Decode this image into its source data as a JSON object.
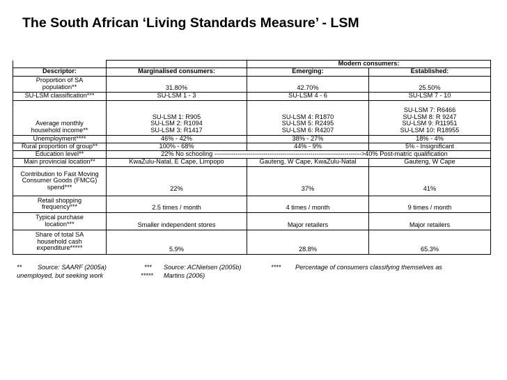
{
  "title": "The South African ‘Living Standards Measure’ - LSM",
  "header": {
    "modern": "Modern consumers:",
    "descriptor": "Descriptor:",
    "marginalised": "Marginalised consumers:",
    "emerging": "Emerging:",
    "established": "Established:"
  },
  "rows": {
    "proportion": {
      "label": [
        "Proportion of SA",
        "population**"
      ],
      "marginalised": "31.80%",
      "emerging": "42.70%",
      "established": "25.50%"
    },
    "classification": {
      "label": "SU-LSM classification***",
      "marginalised": "SU-LSM 1 - 3",
      "emerging": "SU-LSM 4 - 6",
      "established": "SU-LSM 7 - 10"
    },
    "income": {
      "label": [
        "Average monthly",
        "household income**"
      ],
      "marginalised": [
        "SU-LSM 1:  R905",
        "SU-LSM 2:  R1094",
        "SU-LSM 3:  R1417"
      ],
      "emerging": [
        "SU-LSM 4:  R1870",
        "SU-LSM 5:  R2495",
        "SU-LSM 6:  R4207"
      ],
      "established": [
        "SU-LSM 7:  R6466",
        "SU-LSM 8:  R 9247",
        "SU-LSM 9:  R11951",
        "SU-LSM 10:  R18955"
      ]
    },
    "unemployment": {
      "label": "Unemployment****",
      "marginalised": "46% - 42%",
      "emerging": "38% - 27%",
      "established": "18% - 4%"
    },
    "rural": {
      "label": "Rural proportion of group**",
      "marginalised": "100% - 68%",
      "emerging": "44% - 9%",
      "established": "5% - Insignificant"
    },
    "education": {
      "label": "Education level**",
      "text": "22% No schooling --------------------------------------------------------------------->40% Post-matric qualification"
    },
    "provincial": {
      "label": "Main provincial location**",
      "marginalised": "KwaZulu-Natal, E Cape, Limpopo",
      "emerging": "Gauteng, W Cape, KwaZulu-Natal",
      "established": "Gauteng, W Cape"
    },
    "fmcg": {
      "label": [
        "Contribution to Fast Moving",
        "Consumer Goods (FMCG)",
        "spend***"
      ],
      "marginalised": "22%",
      "emerging": "37%",
      "established": "41%"
    },
    "retail": {
      "label": [
        "Retail shopping",
        "frequency***"
      ],
      "marginalised": "2.5 times / month",
      "emerging": "4 times / month",
      "established": "9 times / month"
    },
    "purchase": {
      "label": [
        "Typical purchase",
        "location***"
      ],
      "marginalised": "Smaller independent stores",
      "emerging": "Major retailers",
      "established": "Major retailers"
    },
    "cash": {
      "label": [
        "Share of total SA",
        "household cash",
        "expenditure*****"
      ],
      "marginalised": "5.9%",
      "emerging": "28.8%",
      "established": "65.3%"
    }
  },
  "footnotes": {
    "line1": {
      "a": "**",
      "b": "Source:  SAARF (2005a)",
      "c": "***",
      "d": "Source:  ACNielsen (2005b)",
      "e": "****",
      "f": "Percentage of consumers classifying themselves as"
    },
    "line2": {
      "a": "unemployed, but seeking work",
      "b": "*****",
      "c": "Martins (2006)"
    }
  }
}
